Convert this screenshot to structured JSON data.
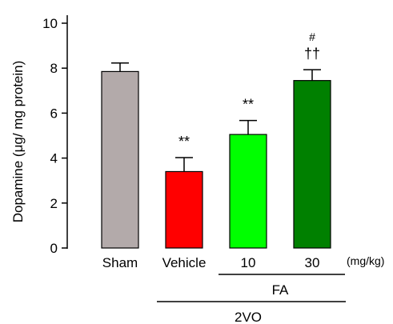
{
  "chart_data": {
    "type": "bar",
    "ylabel": "Dopamine (μg/ mg protein)",
    "ylim": [
      0,
      10
    ],
    "yticks": [
      0,
      2,
      4,
      6,
      8,
      10
    ],
    "categories": [
      "Sham",
      "Vehicle",
      "10",
      "30"
    ],
    "unit_label": "(mg/kg)",
    "values": [
      7.85,
      3.4,
      5.05,
      7.45
    ],
    "errors": [
      0.38,
      0.62,
      0.62,
      0.48
    ],
    "colors": [
      "#b3aaaa",
      "#ff0000",
      "#00ff00",
      "#008000"
    ],
    "significance": [
      {
        "bar": 1,
        "marks": [
          "**"
        ]
      },
      {
        "bar": 2,
        "marks": [
          "**"
        ]
      },
      {
        "bar": 3,
        "marks": [
          "††",
          "#"
        ]
      }
    ],
    "groups": [
      {
        "label": "FA",
        "bars": [
          2,
          3
        ]
      },
      {
        "label": "2VO",
        "bars": [
          1,
          3
        ]
      }
    ],
    "grid": false
  }
}
